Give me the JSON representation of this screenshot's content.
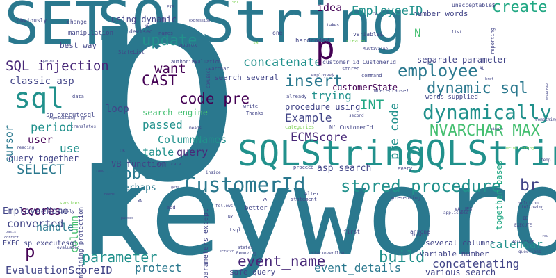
{
  "cloud": {
    "background": "#ffffff",
    "palette": [
      "#440154",
      "#482878",
      "#414487",
      "#2a788e",
      "#21918c",
      "#22a884",
      "#44bf70",
      "#7ad151",
      "#bddf26"
    ],
    "words": {
      "set": "SET",
      "sqlstring_big": "SQLString",
      "p_big": "p",
      "keyword": "keyword",
      "sqlstring_mid": "SQLString",
      "sqlstring_right": "SQLString",
      "sql": "sql",
      "sql_injection": "SQL injection",
      "customerid": "CustomerId",
      "stored_procedure": "stored procedure",
      "dynamically": "dynamically",
      "nvarchar_max": "NVARCHAR MAX",
      "dynamic_sql": "dynamic sql",
      "employee": "employee",
      "insert": "insert",
      "create": "create",
      "employeeid": "EmployeeID",
      "idea": "idea",
      "update": "update",
      "want": "want",
      "cast": "CAST",
      "code_pre": "code pre",
      "concatenate": "concatenate",
      "classic_asp": "classic asp",
      "select": "SELECT",
      "problem": "problem",
      "parameter": "parameter",
      "event_name": "event_name",
      "build": "build",
      "br": "br",
      "concatenating": "concatenating",
      "calendar": "calendar",
      "ecmscore": "ECMScore",
      "example": "Example",
      "int": "INT",
      "trying": "trying",
      "customerstate": "customerState",
      "procedure_using": "procedure using",
      "scores": "scores",
      "converted": "converted",
      "employeename": "EmployeeName",
      "handle": "handle",
      "protect": "protect",
      "evaluationscoreid": "EvaluationScoreID",
      "event_details": "event_details",
      "various_search": "various search",
      "period": "period",
      "use": "use",
      "user": "user",
      "query_together": "query together",
      "passed": "passed",
      "columnnames": "ColumnNames",
      "table": "table",
      "query": "query",
      "vb_function": "VB function",
      "asp_search": "asp search",
      "perhaps": "Perhaps",
      "search_engine": "search engine",
      "loop": "loop",
      "cursor": "cursor",
      "column": "column",
      "together_based": "together based",
      "pre_code": "pre code",
      "separate_parameter": "separate parameter",
      "number_words": "number words",
      "n": "N",
      "p_mid": "p",
      "p_small": "p",
      "using_dynamic": "using dynamic",
      "best_way": "best way",
      "several_columns": "several columns",
      "variable_number": "variable number",
      "safe_query": "safe query",
      "parameters_except": "parameters except",
      "exec_sp": "EXEC sp_executesql",
      "maintaining_protection": "maintaining protection",
      "sp_executesql": "sp_executesql",
      "manipulation": "manipulation",
      "devised": "devised",
      "obviously": "obviously",
      "change": "change",
      "names": "names",
      "approx": "approx",
      "hardcoded": "hardcoded",
      "one": "one",
      "variable_s": "variable$",
      "unacceptable": "unacceptable$",
      "customer_id": "customer_id CustomerId",
      "command": "command",
      "whereclause": "WhereClause!",
      "n_customerid": "N' CustomerId",
      "words_supplied": "words supplied",
      "search_several": "search several",
      "gets": "gets",
      "varchar": "varchar",
      "evaluation": "evaluation",
      "authority": "authority",
      "statelist": "StateList",
      "data": "data",
      "translates": "translates",
      "reading": "reading",
      "means": "means",
      "vb": "VB",
      "ok": "OK",
      "duplicate": "Duplicate",
      "inside": "inside",
      "proceed": "proceed",
      "every": "every",
      "presenting": "presenting",
      "alter": "Alter",
      "better": "better",
      "statement": "statement",
      "follows": "follows",
      "add": "add",
      "first": "first",
      "anyone": "anyone",
      "invalid": "invalid",
      "tsql": "tsql",
      "removing": "Removing",
      "stackoverflow": "stackoverflow",
      "states": "states",
      "values": "VALUES",
      "ie": "IE",
      "execute": "EXECUTE",
      "resultset": "ResultSet",
      "questions": "questions",
      "following": "following",
      "solution": "solution",
      "applicable": "applicable",
      "temp": "temp",
      "something": "something",
      "reporting": "reporting",
      "list": "list",
      "multivalue": "MultiValue",
      "takes": "takes",
      "created": "created",
      "second": "second",
      "categories": "categories",
      "already": "already",
      "write": "write",
      "thanks": "Thanks",
      "stored": "stored",
      "employees": "employee$",
      "xml": "XML",
      "ca": "CA",
      "eis": "EIS",
      "expression": "expression",
      "set_small": "SET",
      "quotes": "quotes",
      "coalesce": "COALESCE",
      "services": "services",
      "quickly": "quickly",
      "needs": "needs",
      "evaluated": "evaluated",
      "basis": "basis",
      "correct": "correct",
      "decimal_string": "Decimal String",
      "nvarchar_v": "NVARCHAR",
      "row": "row",
      "single": "single",
      "al": "AL",
      "href": "href",
      "ny": "NY",
      "ny2": "NY",
      "tn": "TN",
      "report": "report",
      "building": "building",
      "scratch": "scratch",
      "wa": "WA",
      "passes": "passes",
      "rand": "rand",
      "va": "VA"
    }
  }
}
